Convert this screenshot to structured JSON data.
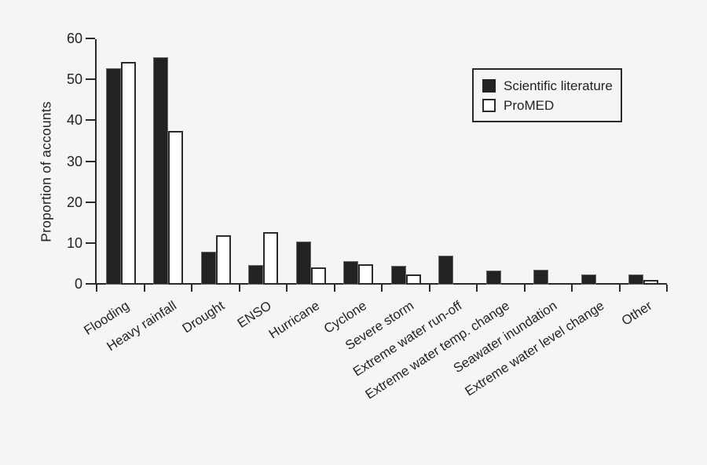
{
  "figure": {
    "background": "#f5f5f6",
    "axis_color": "#2b2b2d",
    "text_color": "#242222"
  },
  "chart_data": {
    "type": "bar",
    "title": "",
    "xlabel": "",
    "ylabel": "Proportion of accounts",
    "ylim": [
      0,
      60
    ],
    "yticks": [
      0,
      10,
      20,
      30,
      40,
      50,
      60
    ],
    "grid": false,
    "legend_position": "upper right",
    "categories": [
      "Flooding",
      "Heavy rainfall",
      "Drought",
      "ENSO",
      "Hurricane",
      "Cyclone",
      "Severe storm",
      "Extreme water run-off",
      "Extreme water temp. change",
      "Seawater inundation",
      "Extreme water level change",
      "Other"
    ],
    "series": [
      {
        "name": "Scientific literature",
        "color": "#232122",
        "values": [
          53,
          55.5,
          8,
          4.7,
          10.5,
          5.8,
          4.6,
          7,
          3.5,
          3.6,
          2.5,
          2.5
        ]
      },
      {
        "name": "ProMED",
        "color": "#ffffff",
        "values": [
          54.5,
          37.5,
          12,
          12.8,
          4.3,
          4.9,
          2.5,
          0,
          0,
          0,
          0,
          1.2
        ]
      }
    ]
  }
}
